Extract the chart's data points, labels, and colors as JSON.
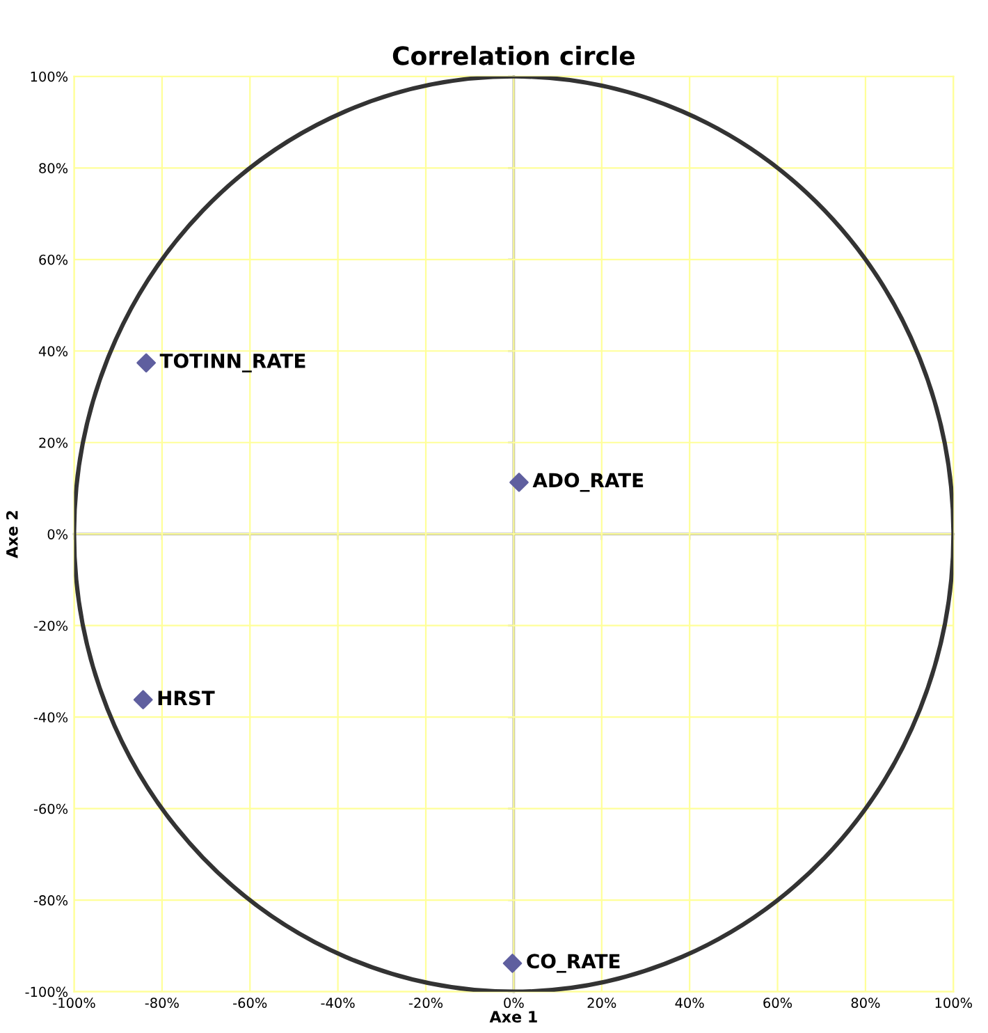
{
  "chart_data": {
    "type": "scatter",
    "title": "Correlation circle",
    "xlabel": "Axe 1",
    "ylabel": "Axe 2",
    "xlim": [
      -100,
      100
    ],
    "ylim": [
      -100,
      100
    ],
    "xticks": [
      {
        "value": -100,
        "label": "-100%"
      },
      {
        "value": -80,
        "label": "-80%"
      },
      {
        "value": -60,
        "label": "-60%"
      },
      {
        "value": -40,
        "label": "-40%"
      },
      {
        "value": -20,
        "label": "-20%"
      },
      {
        "value": 0,
        "label": "0%"
      },
      {
        "value": 20,
        "label": "20%"
      },
      {
        "value": 40,
        "label": "40%"
      },
      {
        "value": 60,
        "label": "60%"
      },
      {
        "value": 80,
        "label": "80%"
      },
      {
        "value": 100,
        "label": "100%"
      }
    ],
    "yticks": [
      {
        "value": -100,
        "label": "-100%"
      },
      {
        "value": -80,
        "label": "-80%"
      },
      {
        "value": -60,
        "label": "-60%"
      },
      {
        "value": -40,
        "label": "-40%"
      },
      {
        "value": -20,
        "label": "-20%"
      },
      {
        "value": 0,
        "label": "0%"
      },
      {
        "value": 20,
        "label": "20%"
      },
      {
        "value": 40,
        "label": "40%"
      },
      {
        "value": 60,
        "label": "60%"
      },
      {
        "value": 80,
        "label": "80%"
      },
      {
        "value": 100,
        "label": "100%"
      }
    ],
    "grid": true,
    "marker": "diamond",
    "series": [
      {
        "color": "#5f5f9f",
        "x": [
          -83.6,
          1.2,
          -84.3,
          -0.3
        ],
        "values": [
          37.4,
          11.3,
          -36.2,
          -93.8
        ]
      }
    ],
    "annotations": [
      {
        "text": "TOTINN_RATE",
        "x": -83.6,
        "y": 37.4
      },
      {
        "text": "ADO_RATE",
        "x": 1.2,
        "y": 11.3
      },
      {
        "text": "HRST",
        "x": -84.3,
        "y": -36.2
      },
      {
        "text": "CO_RATE",
        "x": -0.3,
        "y": -93.8
      }
    ]
  }
}
